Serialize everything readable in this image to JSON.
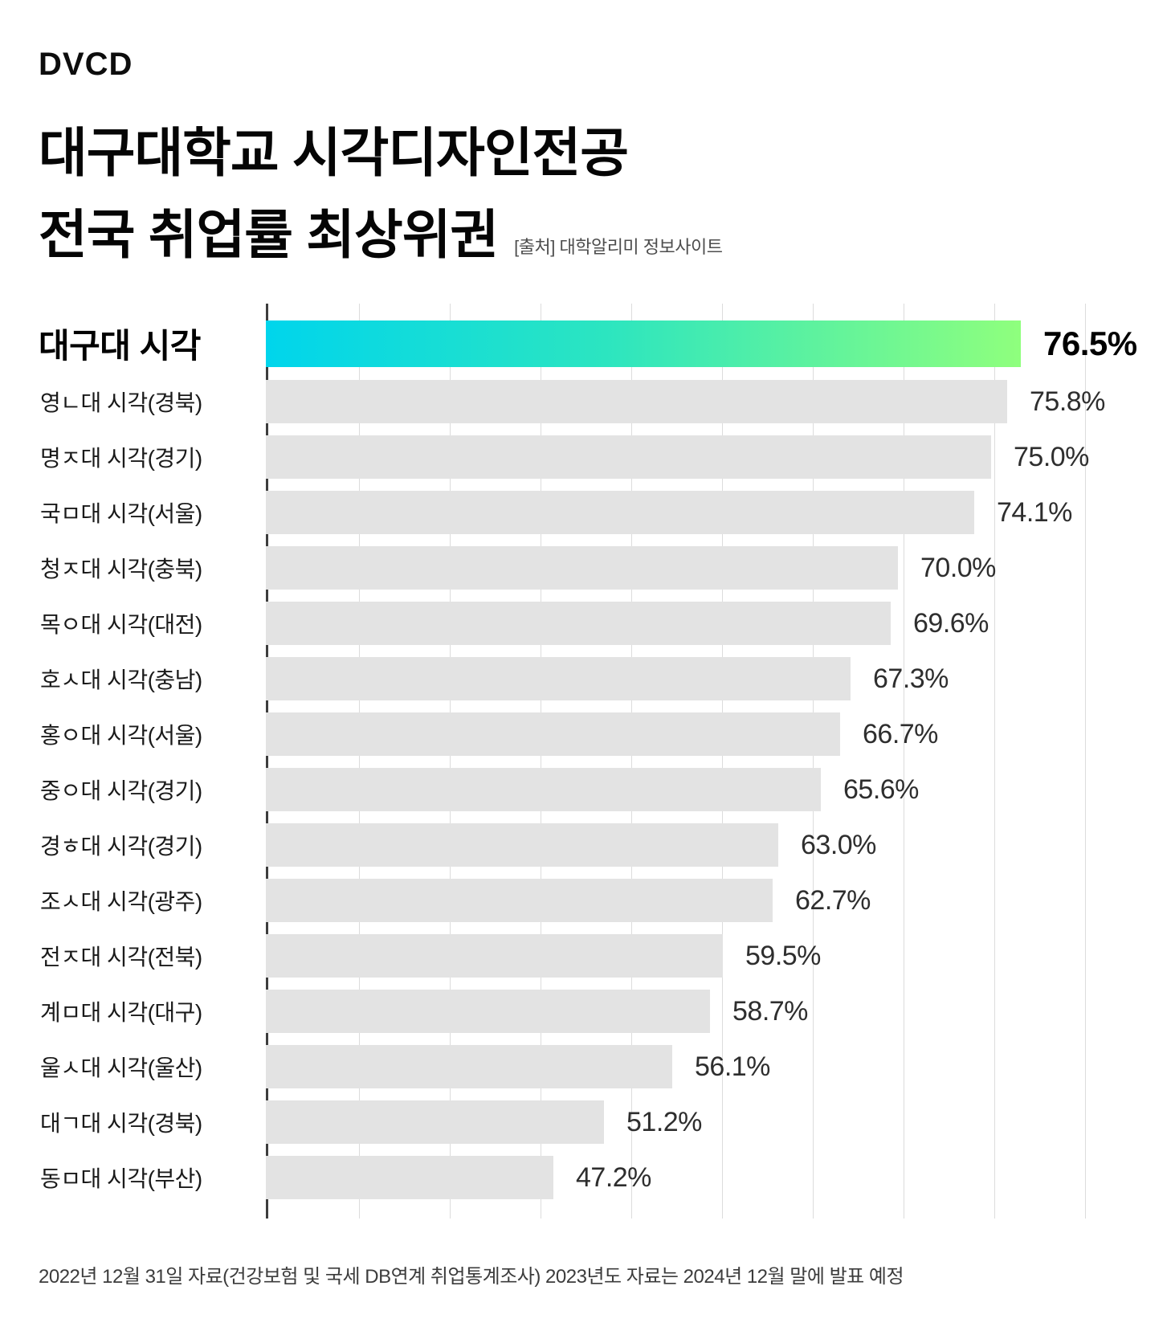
{
  "header": {
    "brand": "DVCD",
    "title_line1": "대구대학교 시각디자인전공",
    "title_line2": "전국 취업률 최상위권",
    "source_note": "[출처] 대학알리미 정보사이트"
  },
  "footer": {
    "note": "2022년 12월 31일 자료(건강보험 및 국세 DB연계 취업통계조사) 2023년도 자료는 2024년 12월 말에 발표 예정"
  },
  "colors": {
    "highlight_gradient_start": "#00d5ec",
    "highlight_gradient_end": "#8fff7d",
    "bar_fill": "#e3e3e3",
    "axis_line": "#3d3d3d",
    "gridline": "#dcdcdc",
    "label_text": "#1a1a1a",
    "value_text": "#2e2e2e",
    "source_text": "#4d4d4d"
  },
  "chart_data": {
    "type": "bar",
    "orientation": "horizontal",
    "unit": "%",
    "grid": "vertical gridlines, unlabeled",
    "gridline_count": 9,
    "legend": "none",
    "highlight_index": 0,
    "categories": [
      "대구대 시각",
      "영ㄴ대 시각(경북)",
      "명ㅈ대 시각(경기)",
      "국ㅁ대 시각(서울)",
      "청ㅈ대 시각(충북)",
      "목ㅇ대 시각(대전)",
      "호ㅅ대 시각(충남)",
      "홍ㅇ대 시각(서울)",
      "중ㅇ대 시각(경기)",
      "경ㅎ대 시각(경기)",
      "조ㅅ대 시각(광주)",
      "전ㅈ대 시각(전북)",
      "계ㅁ대 시각(대구)",
      "울ㅅ대 시각(울산)",
      "대ㄱ대 시각(경북)",
      "동ㅁ대 시각(부산)"
    ],
    "values": [
      76.5,
      75.8,
      75.0,
      74.1,
      70.0,
      69.6,
      67.3,
      66.7,
      65.6,
      63.0,
      62.7,
      59.5,
      58.7,
      56.1,
      51.2,
      47.2
    ],
    "value_labels": [
      "76.5%",
      "75.8%",
      "75.0%",
      "74.1%",
      "70.0%",
      "69.6%",
      "67.3%",
      "66.7%",
      "65.6%",
      "63.0%",
      "62.7%",
      "59.5%",
      "58.7%",
      "56.1%",
      "51.2%",
      "47.2%"
    ]
  }
}
